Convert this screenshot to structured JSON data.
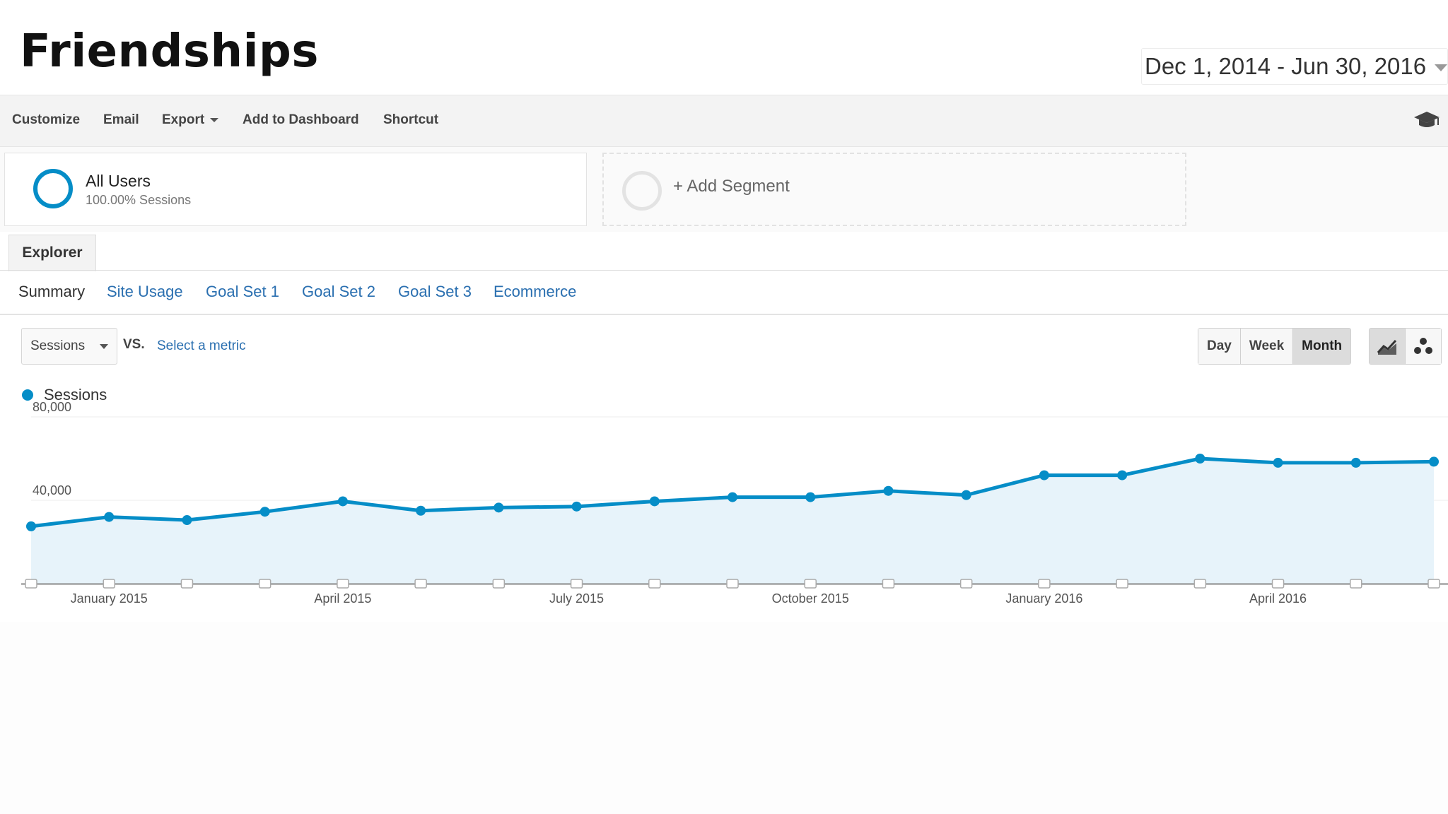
{
  "slide": {
    "title": "Friendships"
  },
  "date_range": {
    "label": "Dec 1, 2014 - Jun 30, 2016"
  },
  "toolbar": {
    "customize": "Customize",
    "email": "Email",
    "export": "Export",
    "add_to_dashboard": "Add to Dashboard",
    "shortcut": "Shortcut"
  },
  "segments": {
    "all_users": {
      "name": "All Users",
      "sub": "100.00% Sessions"
    },
    "add_segment": "+ Add Segment"
  },
  "tabs": {
    "explorer": "Explorer"
  },
  "subtabs": [
    "Summary",
    "Site Usage",
    "Goal Set 1",
    "Goal Set 2",
    "Goal Set 3",
    "Ecommerce"
  ],
  "controls": {
    "metric": "Sessions",
    "vs": "VS.",
    "select_metric": "Select a metric",
    "granularity": [
      "Day",
      "Week",
      "Month"
    ],
    "active_granularity": "Month"
  },
  "colors": {
    "accent": "#058dc7",
    "link": "#2a6fb0"
  },
  "chart_data": {
    "type": "area",
    "legend": [
      "Sessions"
    ],
    "ylim": [
      0,
      80000
    ],
    "y_ticks": [
      {
        "value": 40000,
        "label": "40,000"
      },
      {
        "value": 80000,
        "label": "80,000"
      }
    ],
    "x": [
      "Dec 2014",
      "Jan 2015",
      "Feb 2015",
      "Mar 2015",
      "Apr 2015",
      "May 2015",
      "Jun 2015",
      "Jul 2015",
      "Aug 2015",
      "Sep 2015",
      "Oct 2015",
      "Nov 2015",
      "Dec 2015",
      "Jan 2016",
      "Feb 2016",
      "Mar 2016",
      "Apr 2016",
      "May 2016",
      "Jun 2016"
    ],
    "x_labels": [
      {
        "index": 1,
        "label": "January 2015"
      },
      {
        "index": 4,
        "label": "April 2015"
      },
      {
        "index": 7,
        "label": "July 2015"
      },
      {
        "index": 10,
        "label": "October 2015"
      },
      {
        "index": 13,
        "label": "January 2016"
      },
      {
        "index": 16,
        "label": "April 2016"
      }
    ],
    "series": [
      {
        "name": "Sessions",
        "values": [
          27500,
          32000,
          30500,
          34500,
          39500,
          35000,
          36500,
          37000,
          39500,
          41500,
          41500,
          44500,
          42500,
          52000,
          52000,
          60000,
          58000,
          58000,
          58500
        ]
      }
    ]
  }
}
